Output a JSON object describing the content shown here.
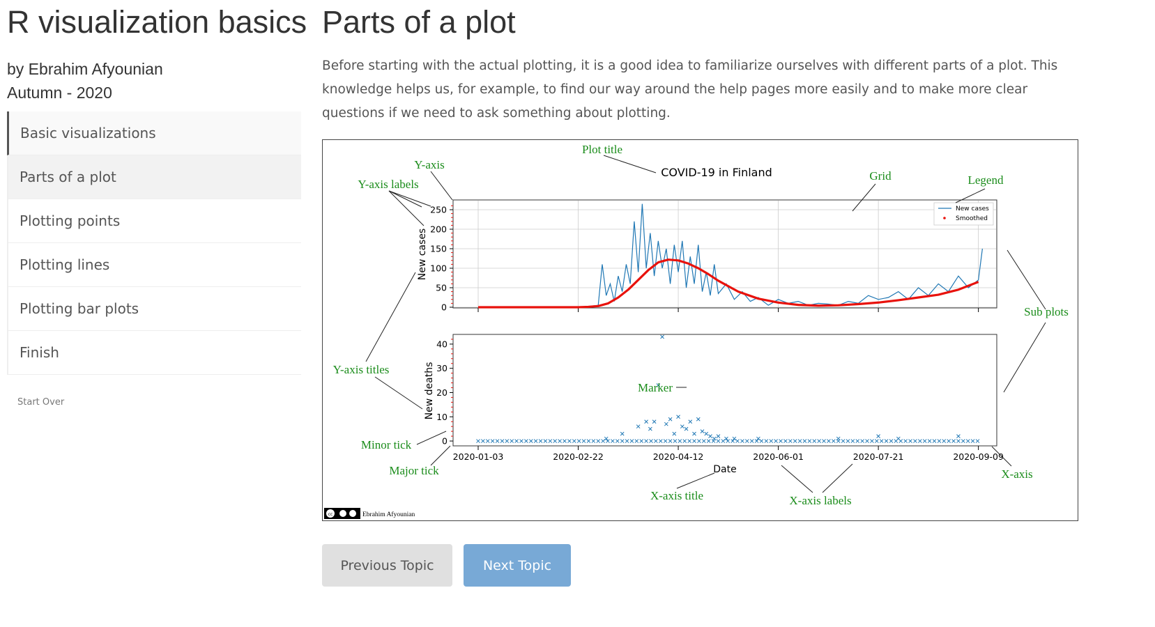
{
  "sidebar": {
    "app_title": "R visualization basics",
    "author_line": "by Ebrahim Afyounian",
    "date_line": "Autumn - 2020",
    "items": [
      {
        "label": "Basic visualizations"
      },
      {
        "label": "Parts of a plot"
      },
      {
        "label": "Plotting points"
      },
      {
        "label": "Plotting lines"
      },
      {
        "label": "Plotting bar plots"
      },
      {
        "label": "Finish"
      }
    ],
    "start_over": "Start Over"
  },
  "main": {
    "title": "Parts of a plot",
    "intro": "Before starting with the actual plotting, it is a good idea to familiarize ourselves with different parts of a plot. This knowledge helps us, for example, to find our way around the help pages more easily and to make more clear questions if we need to ask something about plotting."
  },
  "figure": {
    "annotations": {
      "plot_title": "Plot title",
      "y_axis": "Y-axis",
      "y_axis_labels": "Y-axis labels",
      "grid": "Grid",
      "legend": "Legend",
      "sub_plots": "Sub plots",
      "y_axis_titles": "Y-axis titles",
      "marker": "Marker",
      "minor_tick": "Minor tick",
      "major_tick": "Major tick",
      "x_axis_title": "X-axis title",
      "x_axis_labels": "X-axis labels",
      "x_axis": "X-axis"
    },
    "credit": "Ebrahim Afyounian",
    "annotation_color": "#1a8c1a"
  },
  "chart_data": [
    {
      "type": "line",
      "title": "COVID-19 in Finland",
      "ylabel": "New cases",
      "ylim": [
        0,
        275
      ],
      "yticks": [
        0,
        50,
        100,
        150,
        200,
        250
      ],
      "xticks": [
        "2020-01-03",
        "2020-02-22",
        "2020-04-12",
        "2020-06-01",
        "2020-07-21",
        "2020-09-09"
      ],
      "grid": true,
      "legend": "top-right",
      "series": [
        {
          "name": "New cases",
          "color": "#1f77b4",
          "x": [
            0,
            10,
            20,
            30,
            40,
            50,
            55,
            60,
            62,
            64,
            66,
            68,
            70,
            72,
            74,
            76,
            78,
            80,
            82,
            84,
            86,
            88,
            90,
            92,
            94,
            96,
            98,
            100,
            102,
            104,
            106,
            108,
            110,
            112,
            114,
            116,
            118,
            120,
            124,
            128,
            132,
            136,
            140,
            145,
            150,
            155,
            160,
            165,
            170,
            175,
            180,
            185,
            190,
            195,
            200,
            205,
            210,
            215,
            220,
            225,
            230,
            235,
            240,
            245,
            250,
            252
          ],
          "values": [
            0,
            0,
            0,
            0,
            0,
            0,
            2,
            5,
            110,
            30,
            60,
            15,
            80,
            40,
            110,
            60,
            220,
            90,
            265,
            100,
            190,
            80,
            170,
            100,
            150,
            60,
            160,
            90,
            170,
            50,
            130,
            60,
            160,
            40,
            90,
            30,
            110,
            35,
            60,
            20,
            40,
            15,
            25,
            5,
            20,
            10,
            15,
            5,
            10,
            8,
            5,
            15,
            10,
            30,
            20,
            25,
            40,
            20,
            50,
            30,
            60,
            40,
            80,
            50,
            70,
            150
          ]
        },
        {
          "name": "Smoothed",
          "color": "#e8120c",
          "x": [
            0,
            40,
            50,
            55,
            60,
            65,
            70,
            75,
            80,
            85,
            90,
            95,
            100,
            105,
            110,
            115,
            120,
            130,
            140,
            150,
            160,
            170,
            180,
            190,
            200,
            210,
            220,
            230,
            240,
            250
          ],
          "values": [
            0,
            0,
            0,
            1,
            3,
            10,
            25,
            45,
            70,
            95,
            115,
            122,
            120,
            112,
            100,
            85,
            68,
            40,
            22,
            12,
            6,
            4,
            5,
            8,
            12,
            18,
            25,
            32,
            45,
            65
          ]
        }
      ]
    },
    {
      "type": "scatter",
      "ylabel": "New deaths",
      "xlabel": "Date",
      "ylim": [
        -2,
        44
      ],
      "yticks": [
        0,
        10,
        20,
        30,
        40
      ],
      "xticks": [
        "2020-01-03",
        "2020-02-22",
        "2020-04-12",
        "2020-06-01",
        "2020-07-21",
        "2020-09-09"
      ],
      "series": [
        {
          "name": "New deaths",
          "marker": "x",
          "color": "#1f77b4",
          "x": [
            0,
            8,
            16,
            24,
            32,
            40,
            48,
            56,
            64,
            72,
            80,
            84,
            86,
            88,
            90,
            92,
            94,
            96,
            98,
            100,
            102,
            104,
            106,
            108,
            110,
            112,
            114,
            116,
            118,
            120,
            124,
            128,
            132,
            136,
            140,
            150,
            160,
            170,
            180,
            190,
            200,
            210,
            220,
            230,
            240,
            250
          ],
          "values": [
            0,
            0,
            0,
            0,
            0,
            0,
            0,
            0,
            1,
            3,
            6,
            8,
            5,
            8,
            23,
            43,
            7,
            9,
            3,
            10,
            6,
            5,
            8,
            3,
            9,
            4,
            3,
            2,
            1,
            2,
            1,
            1,
            0,
            0,
            1,
            0,
            0,
            0,
            1,
            0,
            2,
            1,
            0,
            0,
            2,
            0
          ]
        }
      ]
    }
  ]
}
